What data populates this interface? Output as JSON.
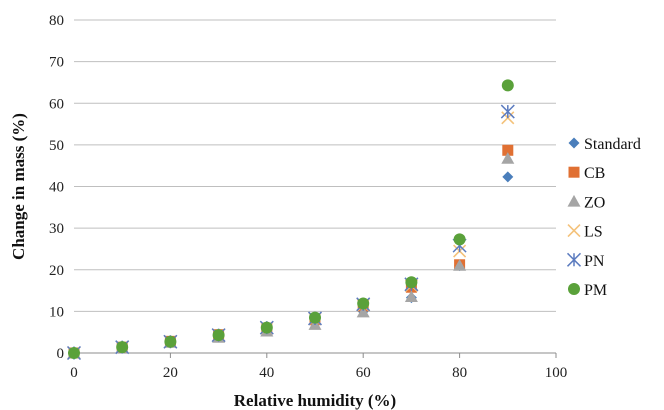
{
  "chart_data": {
    "type": "scatter",
    "title": "",
    "xlabel": "Relative humidity (%)",
    "ylabel": "Change in mass (%)",
    "xlim": [
      0,
      100
    ],
    "ylim": [
      0,
      80
    ],
    "xticks": [
      0,
      20,
      40,
      60,
      80,
      100
    ],
    "yticks": [
      0,
      10,
      20,
      30,
      40,
      50,
      60,
      70,
      80
    ],
    "grid": "horizontal",
    "legend": "right",
    "series": [
      {
        "name": "Standard",
        "marker": "diamond",
        "color": "#4a7ebb",
        "x": [
          0,
          10,
          20,
          30,
          40,
          50,
          60,
          70,
          80,
          90
        ],
        "y": [
          0,
          1.3,
          2.5,
          3.8,
          5.3,
          7.0,
          10.0,
          13.3,
          21.0,
          42.3
        ]
      },
      {
        "name": "CB",
        "marker": "square",
        "color": "#e07033",
        "x": [
          0,
          10,
          20,
          30,
          40,
          50,
          60,
          70,
          80,
          90
        ],
        "y": [
          0,
          1.4,
          2.8,
          4.4,
          6.0,
          8.0,
          11.3,
          15.8,
          21.2,
          48.7
        ]
      },
      {
        "name": "ZO",
        "marker": "triangle",
        "color": "#a5a5a5",
        "x": [
          0,
          10,
          20,
          30,
          40,
          50,
          60,
          70,
          80,
          90
        ],
        "y": [
          0,
          1.3,
          2.5,
          3.7,
          5.2,
          6.8,
          9.8,
          13.5,
          21.0,
          46.7
        ]
      },
      {
        "name": "LS",
        "marker": "x",
        "color": "#f4c27a",
        "x": [
          0,
          10,
          20,
          30,
          40,
          50,
          60,
          70,
          80,
          90
        ],
        "y": [
          0,
          1.4,
          2.7,
          4.3,
          6.0,
          8.2,
          11.5,
          16.2,
          24.5,
          56.5
        ]
      },
      {
        "name": "PN",
        "marker": "star",
        "color": "#5b7bbf",
        "x": [
          0,
          10,
          20,
          30,
          40,
          50,
          60,
          70,
          80,
          90
        ],
        "y": [
          0,
          1.4,
          2.7,
          4.3,
          6.1,
          8.3,
          11.7,
          16.5,
          25.8,
          58.0
        ]
      },
      {
        "name": "PM",
        "marker": "circle",
        "color": "#5aa13a",
        "x": [
          0,
          10,
          20,
          30,
          40,
          50,
          60,
          70,
          80,
          90
        ],
        "y": [
          0,
          1.4,
          2.7,
          4.3,
          6.1,
          8.5,
          11.9,
          17.0,
          27.3,
          64.3
        ]
      }
    ]
  }
}
